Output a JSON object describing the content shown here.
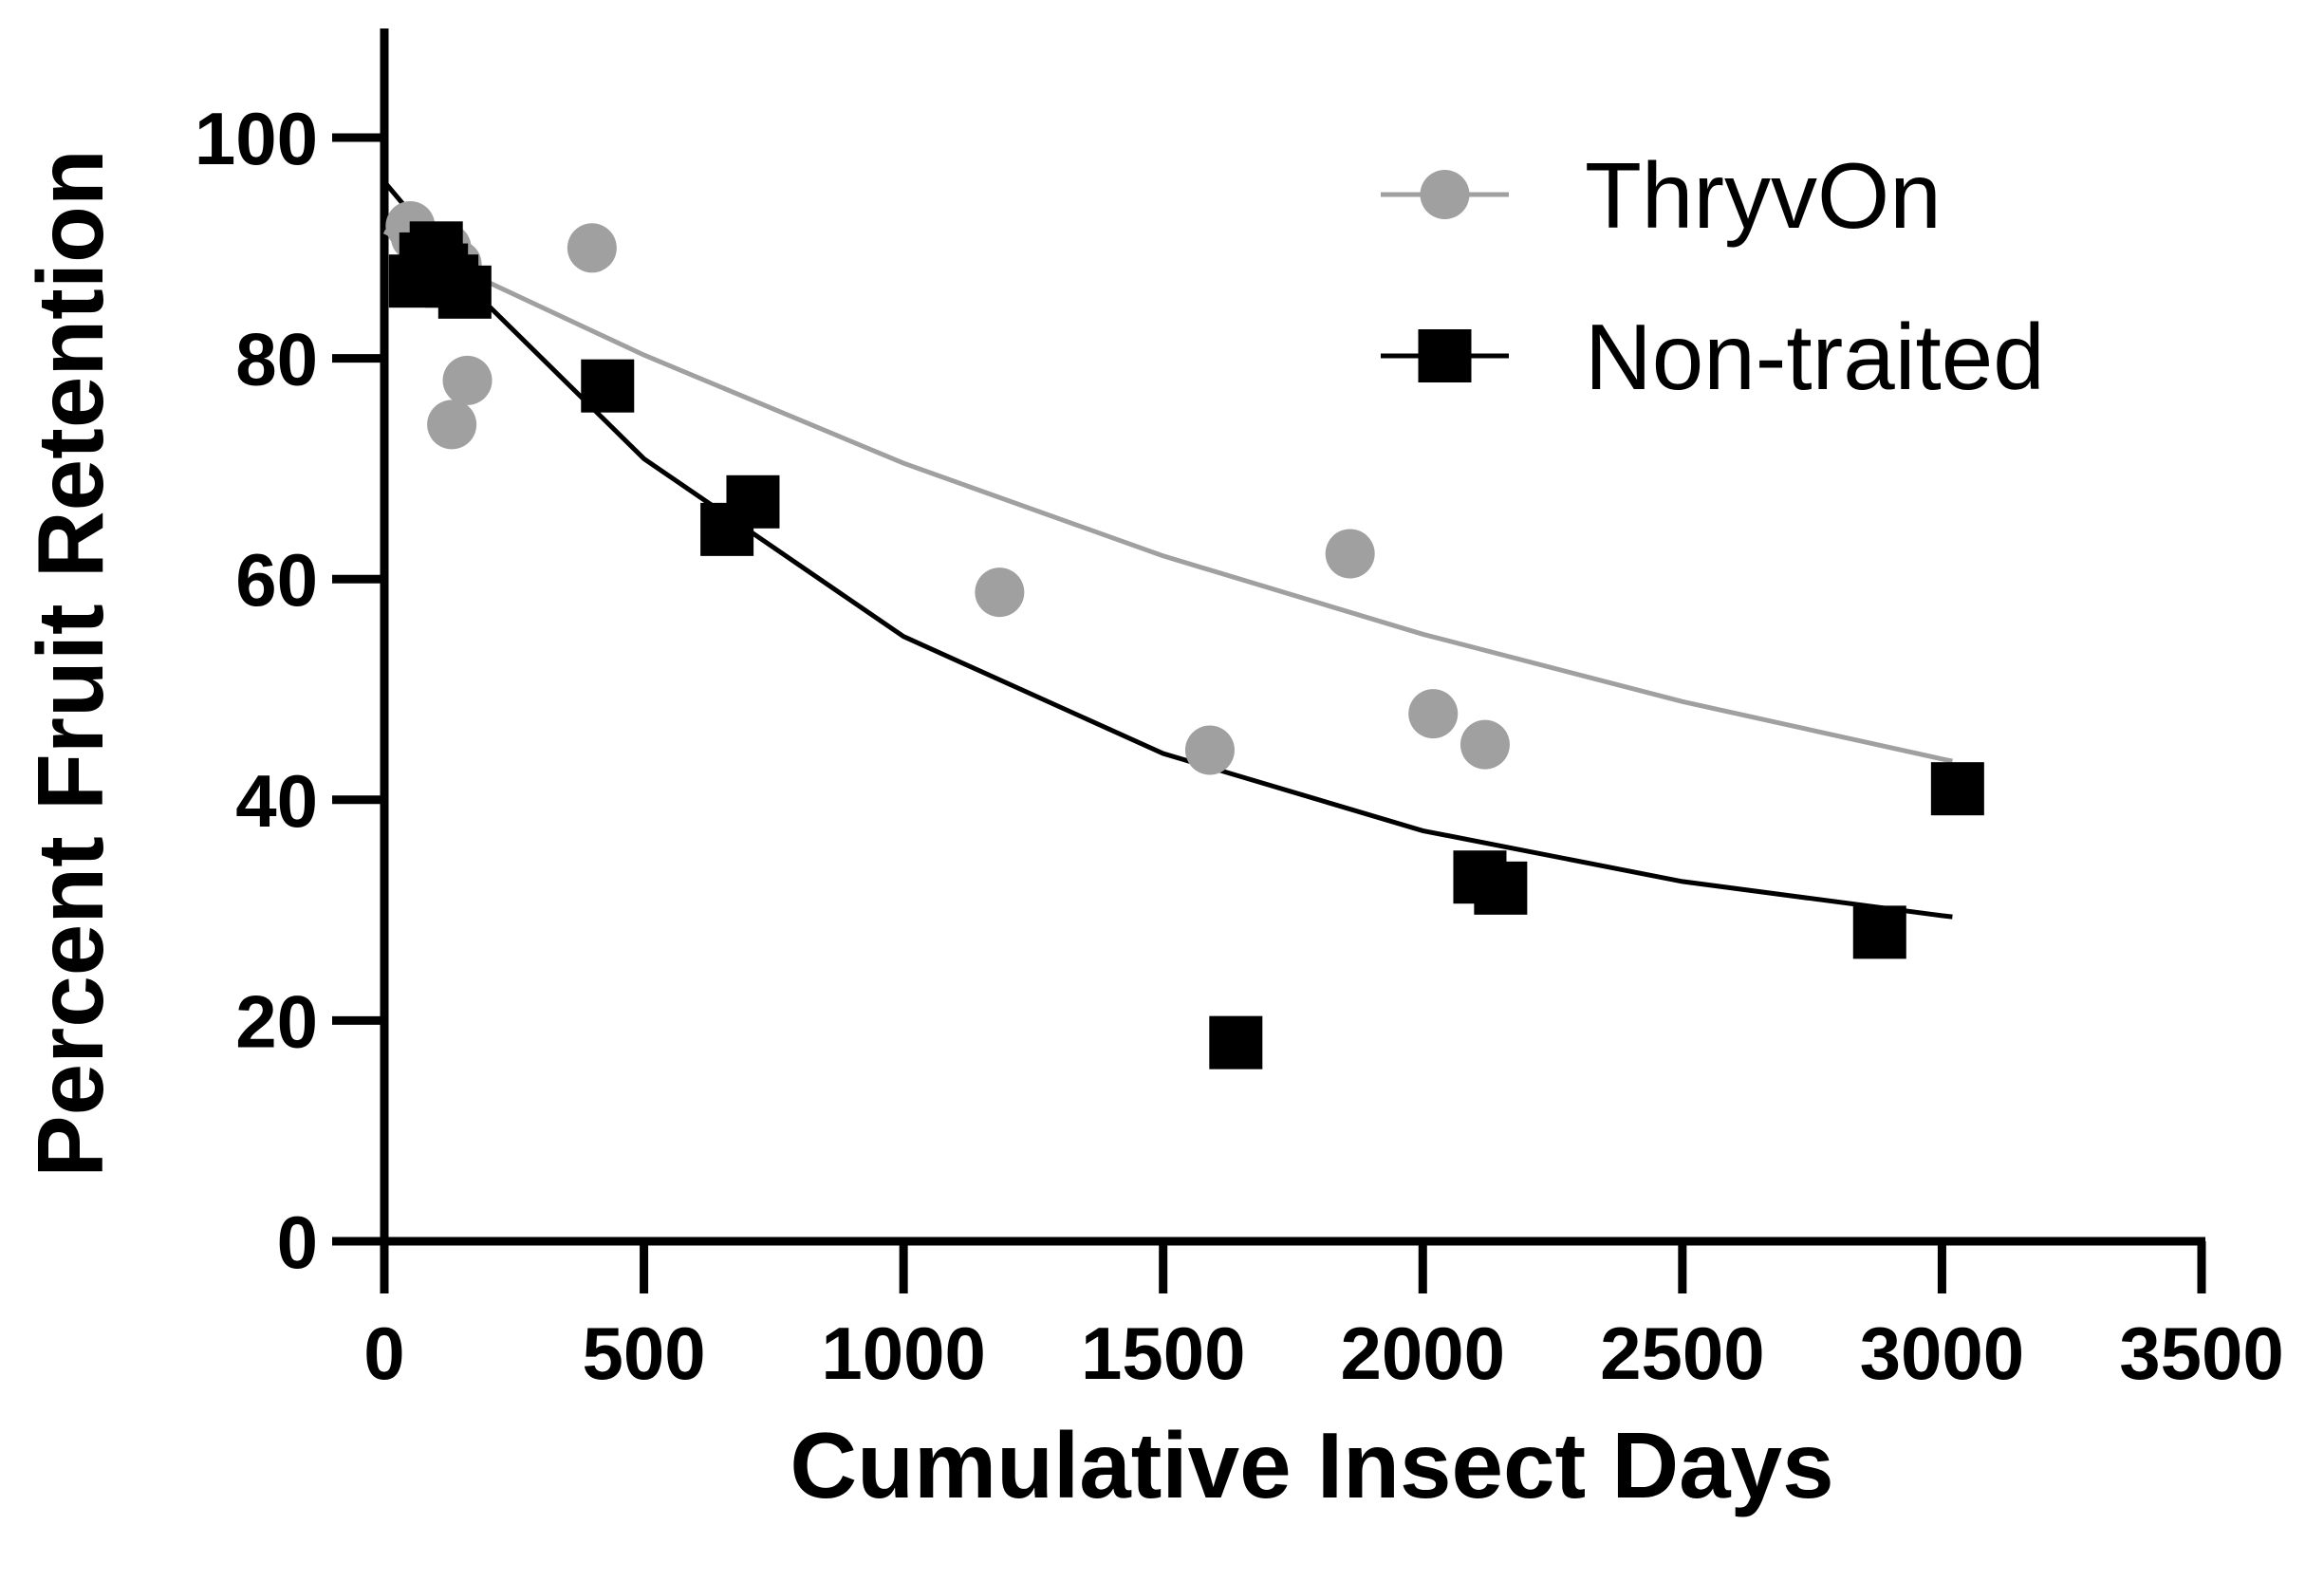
{
  "chart_data": {
    "type": "scatter",
    "title": "",
    "xlabel": "Cumulative Insect Days",
    "ylabel": "Percent Fruit Retention",
    "xlim": [
      0,
      3500
    ],
    "ylim": [
      0,
      110
    ],
    "xticks": [
      0,
      500,
      1000,
      1500,
      2000,
      2500,
      3000,
      3500
    ],
    "yticks": [
      0,
      20,
      40,
      60,
      80,
      100
    ],
    "grid": false,
    "legend_position": "top-right",
    "series": [
      {
        "name": "ThryvOn",
        "color": "#a0a0a0",
        "marker": "circle",
        "points": [
          [
            50,
            92
          ],
          [
            60,
            91
          ],
          [
            75,
            90
          ],
          [
            85,
            89
          ],
          [
            100,
            88.5
          ],
          [
            120,
            90
          ],
          [
            140,
            88.5
          ],
          [
            130,
            74
          ],
          [
            160,
            78
          ],
          [
            400,
            90
          ],
          [
            1185,
            58.8
          ],
          [
            1590,
            44.5
          ],
          [
            1860,
            62.3
          ],
          [
            2020,
            47.8
          ],
          [
            2120,
            45
          ]
        ],
        "fit": [
          [
            0,
            91.5
          ],
          [
            200,
            86.9
          ],
          [
            500,
            80.3
          ],
          [
            1000,
            70.5
          ],
          [
            1500,
            62.1
          ],
          [
            2000,
            55.0
          ],
          [
            2500,
            48.9
          ],
          [
            3000,
            43.7
          ],
          [
            3020,
            43.5
          ]
        ]
      },
      {
        "name": "Non-traited",
        "color": "#000000",
        "marker": "square",
        "points": [
          [
            60,
            87
          ],
          [
            80,
            89
          ],
          [
            100,
            90
          ],
          [
            110,
            88
          ],
          [
            130,
            87
          ],
          [
            155,
            86
          ],
          [
            430,
            77.5
          ],
          [
            660,
            64.5
          ],
          [
            710,
            67
          ],
          [
            1640,
            18
          ],
          [
            2110,
            33
          ],
          [
            2150,
            32
          ],
          [
            2880,
            28
          ],
          [
            3030,
            41
          ]
        ],
        "fit": [
          [
            0,
            96
          ],
          [
            200,
            84.8
          ],
          [
            500,
            70.9
          ],
          [
            1000,
            54.8
          ],
          [
            1500,
            44.2
          ],
          [
            2000,
            37.2
          ],
          [
            2500,
            32.6
          ],
          [
            3000,
            29.5
          ],
          [
            3020,
            29.4
          ]
        ]
      }
    ]
  }
}
